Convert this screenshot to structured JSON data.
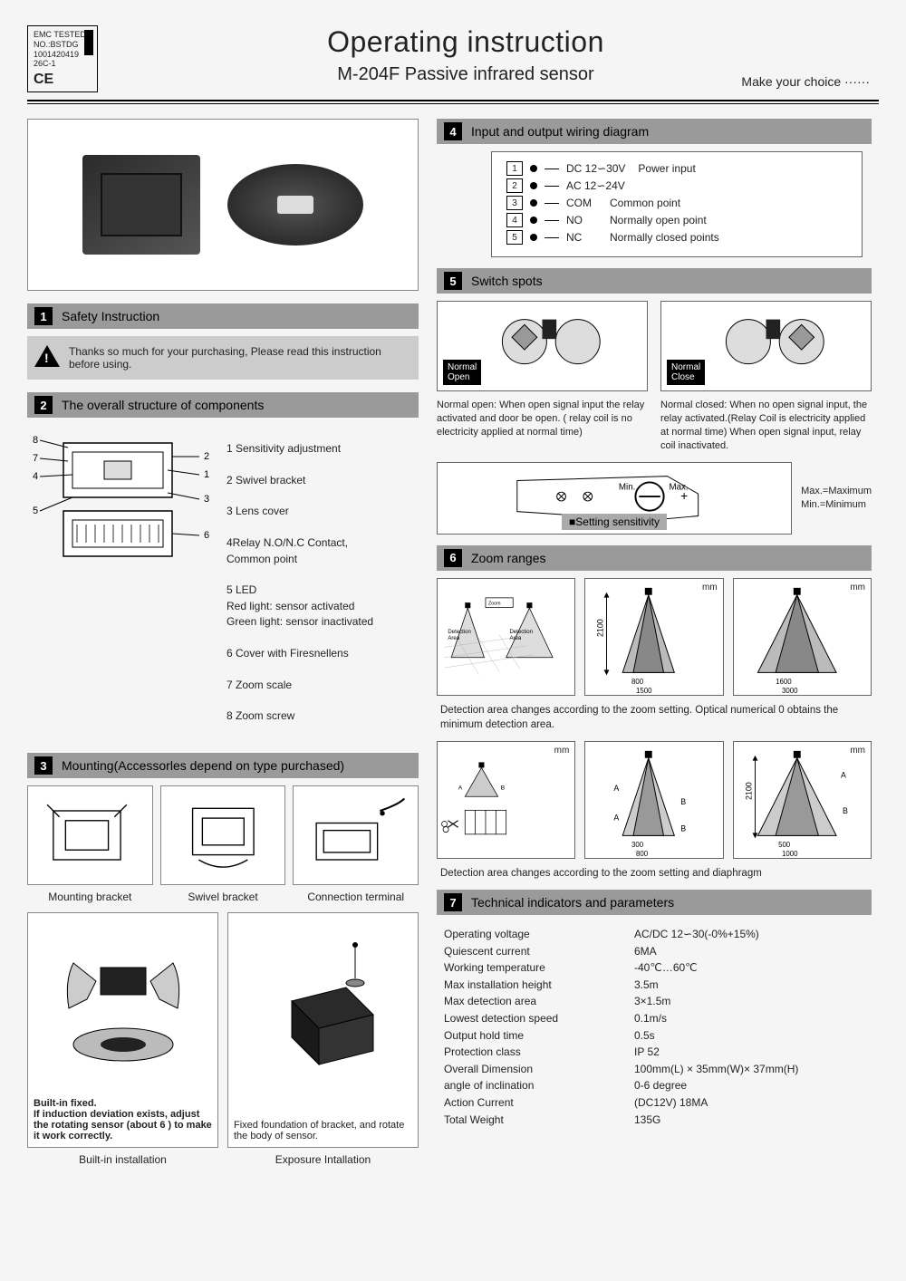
{
  "emc": {
    "l1": "EMC TESTED",
    "l2": "NO.:BSTDG",
    "l3": "1001420419",
    "l4": "26C-1",
    "ce": "CE"
  },
  "title": "Operating instruction",
  "subtitle": "M-204F Passive infrared sensor",
  "tagline": "Make  your choice ······",
  "sections": {
    "s1": "Safety Instruction",
    "s2": "The overall structure of components",
    "s3": "Mounting(Accessorles depend  on type purchased)",
    "s4": "Input and output wiring diagram",
    "s5": "Switch spots",
    "s6": "Zoom ranges",
    "s7": "Technical indicators and parameters"
  },
  "warning": "Thanks so much for your purchasing, Please read this instruction before using.",
  "components": {
    "c1": "1 Sensitivity adjustment",
    "c2": "2 Swivel bracket",
    "c3": "3 Lens cover",
    "c4": "4Relay N.O/N.C Contact,\n   Common point",
    "c5": "5 LED\n   Red  light: sensor activated\n   Green light: sensor inactivated",
    "c6": "6 Cover with Firesnellens",
    "c7": "7 Zoom scale",
    "c8": "8 Zoom screw"
  },
  "mount": {
    "m1": "Mounting bracket",
    "m2": "Swivel bracket",
    "m3": "Connection terminal"
  },
  "install": {
    "left_note": "Built-in fixed.\nIf  induction deviation exists, adjust the rotating sensor  (about  6 )  to make  it  work correctly.",
    "right_note": "Fixed foundation of  bracket, and rotate the body of  sensor.",
    "left_label": "Built-in installation",
    "right_label": "Exposure Intallation"
  },
  "wiring": {
    "r1a": "DC 12∽30V",
    "r1b": "Power input",
    "r2a": "AC 12∽24V",
    "r3a": "COM",
    "r3b": "Common point",
    "r4a": "NO",
    "r4b": "Normally open point",
    "r5a": "NC",
    "r5b": "Normally closed points"
  },
  "switch": {
    "no": "Normal\nOpen",
    "nc": "Normal\nClose",
    "no_desc": "Normal open: When open signal input  the relay  activated and door be open. ( relay coil is no electricity applied  at normal time)",
    "nc_desc": "Normal  closed: When no open signal input, the relay activated.(Relay Coil is electricity applied at normal time) When open signal input, relay coil inactivated."
  },
  "sensitivity": {
    "min": "Min.",
    "max": "Max.",
    "label": "■Setting sensitivity",
    "legend": "Max.=Maximum\nMin.=Minimum"
  },
  "zoom": {
    "zoom_pos": "Zoom\nposition",
    "det_area": "Detection\nArea",
    "h": "2100",
    "d1a": "800",
    "d1b": "1500",
    "d2a": "1600",
    "d2b": "3000",
    "note1": "Detection area changes according to the zoom setting. Optical numerical 0 obtains  the minimum detection area.",
    "d3a": "300",
    "d3b": "800",
    "d4a": "500",
    "d4b": "1000",
    "note2": "Detection area changes according to the  zoom setting and diaphragm",
    "mm": "mm",
    "A": "A",
    "B": "B"
  },
  "tech": [
    {
      "l": "Operating voltage",
      "v": "AC/DC 12∽30(-0%+15%)"
    },
    {
      "l": "Quiescent current",
      "v": "6MA"
    },
    {
      "l": "Working temperature",
      "v": "-40℃…60℃"
    },
    {
      "l": "Max installation height",
      "v": "3.5m"
    },
    {
      "l": "Max detection area",
      "v": "3×1.5m"
    },
    {
      "l": "Lowest detection speed",
      "v": "0.1m/s"
    },
    {
      "l": "Output hold time",
      "v": "0.5s"
    },
    {
      "l": "Protection class",
      "v": "IP 52"
    },
    {
      "l": "Overall Dimension",
      "v": "100mm(L) × 35mm(W)× 37mm(H)"
    },
    {
      "l": "angle of inclination",
      "v": "0-6 degree"
    },
    {
      "l": "Action Current",
      "v": "(DC12V) 18MA"
    },
    {
      "l": "Total Weight",
      "v": "135G"
    }
  ]
}
